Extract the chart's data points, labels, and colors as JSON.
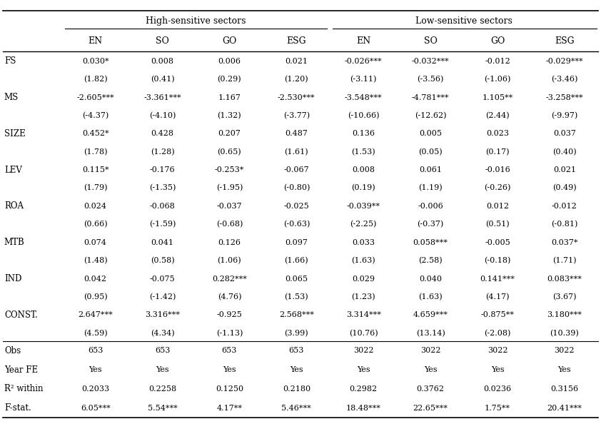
{
  "title_high": "High-sensitive sectors",
  "title_low": "Low-sensitive sectors",
  "col_headers": [
    "EN",
    "SO",
    "GO",
    "ESG",
    "EN",
    "SO",
    "GO",
    "ESG"
  ],
  "table_data": [
    [
      "0.030*",
      "0.008",
      "0.006",
      "0.021",
      "-0.026***",
      "-0.032***",
      "-0.012",
      "-0.029***"
    ],
    [
      "(1.82)",
      "(0.41)",
      "(0.29)",
      "(1.20)",
      "(-3.11)",
      "(-3.56)",
      "(-1.06)",
      "(-3.46)"
    ],
    [
      "-2.605***",
      "-3.361***",
      "1.167",
      "-2.530***",
      "-3.548***",
      "-4.781***",
      "1.105**",
      "-3.258***"
    ],
    [
      "(-4.37)",
      "(-4.10)",
      "(1.32)",
      "(-3.77)",
      "(-10.66)",
      "(-12.62)",
      "(2.44)",
      "(-9.97)"
    ],
    [
      "0.452*",
      "0.428",
      "0.207",
      "0.487",
      "0.136",
      "0.005",
      "0.023",
      "0.037"
    ],
    [
      "(1.78)",
      "(1.28)",
      "(0.65)",
      "(1.61)",
      "(1.53)",
      "(0.05)",
      "(0.17)",
      "(0.40)"
    ],
    [
      "0.115*",
      "-0.176",
      "-0.253*",
      "-0.067",
      "0.008",
      "0.061",
      "-0.016",
      "0.021"
    ],
    [
      "(1.79)",
      "(-1.35)",
      "(-1.95)",
      "(-0.80)",
      "(0.19)",
      "(1.19)",
      "(-0.26)",
      "(0.49)"
    ],
    [
      "0.024",
      "-0.068",
      "-0.037",
      "-0.025",
      "-0.039**",
      "-0.006",
      "0.012",
      "-0.012"
    ],
    [
      "(0.66)",
      "(-1.59)",
      "(-0.68)",
      "(-0.63)",
      "(-2.25)",
      "(-0.37)",
      "(0.51)",
      "(-0.81)"
    ],
    [
      "0.074",
      "0.041",
      "0.126",
      "0.097",
      "0.033",
      "0.058***",
      "-0.005",
      "0.037*"
    ],
    [
      "(1.48)",
      "(0.58)",
      "(1.06)",
      "(1.66)",
      "(1.63)",
      "(2.58)",
      "(-0.18)",
      "(1.71)"
    ],
    [
      "0.042",
      "-0.075",
      "0.282***",
      "0.065",
      "0.029",
      "0.040",
      "0.141***",
      "0.083***"
    ],
    [
      "(0.95)",
      "(-1.42)",
      "(4.76)",
      "(1.53)",
      "(1.23)",
      "(1.63)",
      "(4.17)",
      "(3.67)"
    ],
    [
      "2.647***",
      "3.316***",
      "-0.925",
      "2.568***",
      "3.314***",
      "4.659***",
      "-0.875**",
      "3.180***"
    ],
    [
      "(4.59)",
      "(4.34)",
      "(-1.13)",
      "(3.99)",
      "(10.76)",
      "(13.14)",
      "(-2.08)",
      "(10.39)"
    ],
    [
      "653",
      "653",
      "653",
      "653",
      "3022",
      "3022",
      "3022",
      "3022"
    ],
    [
      "Yes",
      "Yes",
      "Yes",
      "Yes",
      "Yes",
      "Yes",
      "Yes",
      "Yes"
    ],
    [
      "0.2033",
      "0.2258",
      "0.1250",
      "0.2180",
      "0.2982",
      "0.3762",
      "0.0236",
      "0.3156"
    ],
    [
      "6.05***",
      "5.54***",
      "4.17**",
      "5.46***",
      "18.48***",
      "22.65***",
      "1.75**",
      "20.41***"
    ]
  ],
  "pair_labels": [
    "FS",
    "MS",
    "SIZE",
    "LEV",
    "ROA",
    "MTB",
    "IND",
    "CONST."
  ],
  "bottom_labels": [
    "Obs",
    "Year FE",
    "R² within",
    "F-stat."
  ],
  "bg_color": "#ffffff",
  "text_color": "#000000",
  "line_color": "#000000",
  "fs_data": 8.0,
  "fs_header": 9.0,
  "fs_label": 8.5
}
